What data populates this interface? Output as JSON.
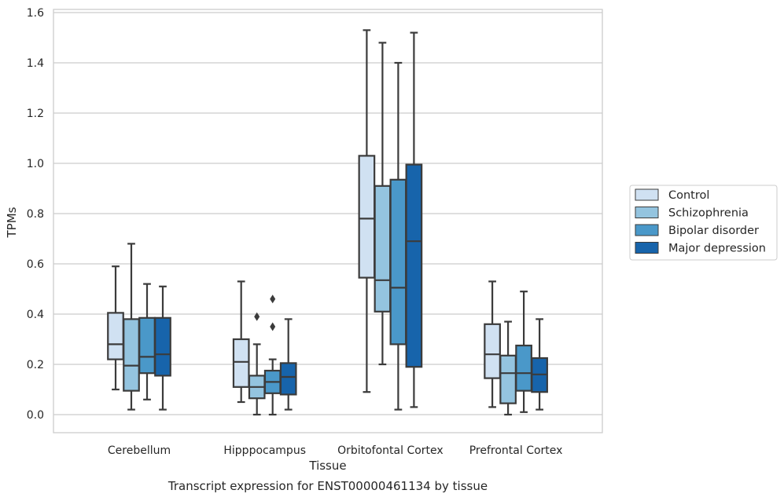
{
  "chart_data": {
    "type": "box",
    "title": "Transcript expression for ENST00000461134 by tissue",
    "xlabel": "Tissue",
    "ylabel": "TPMs",
    "ylim": [
      -0.07,
      1.61
    ],
    "yticks": [
      "0.0",
      "0.2",
      "0.4",
      "0.6",
      "0.8",
      "1.0",
      "1.2",
      "1.4",
      "1.6"
    ],
    "grid": true,
    "legend_position": "right",
    "categories": [
      "Cerebellum",
      "Hipppocampus",
      "Orbitofontal Cortex",
      "Prefrontal Cortex"
    ],
    "series": [
      {
        "name": "Control",
        "color": "#d0e1f2",
        "boxes": [
          {
            "whislo": 0.1,
            "q1": 0.22,
            "med": 0.28,
            "q3": 0.405,
            "whishi": 0.59,
            "fliers": []
          },
          {
            "whislo": 0.05,
            "q1": 0.11,
            "med": 0.21,
            "q3": 0.3,
            "whishi": 0.53,
            "fliers": []
          },
          {
            "whislo": 0.09,
            "q1": 0.545,
            "med": 0.78,
            "q3": 1.03,
            "whishi": 1.53,
            "fliers": []
          },
          {
            "whislo": 0.03,
            "q1": 0.145,
            "med": 0.24,
            "q3": 0.36,
            "whishi": 0.53,
            "fliers": []
          }
        ]
      },
      {
        "name": "Schizophrenia",
        "color": "#94c4df",
        "boxes": [
          {
            "whislo": 0.02,
            "q1": 0.095,
            "med": 0.195,
            "q3": 0.38,
            "whishi": 0.68,
            "fliers": []
          },
          {
            "whislo": 0.0,
            "q1": 0.065,
            "med": 0.11,
            "q3": 0.155,
            "whishi": 0.28,
            "fliers": [
              0.39
            ]
          },
          {
            "whislo": 0.2,
            "q1": 0.41,
            "med": 0.535,
            "q3": 0.91,
            "whishi": 1.48,
            "fliers": []
          },
          {
            "whislo": 0.0,
            "q1": 0.045,
            "med": 0.165,
            "q3": 0.235,
            "whishi": 0.37,
            "fliers": []
          }
        ]
      },
      {
        "name": "Bipolar disorder",
        "color": "#4a98c9",
        "boxes": [
          {
            "whislo": 0.06,
            "q1": 0.165,
            "med": 0.23,
            "q3": 0.385,
            "whishi": 0.52,
            "fliers": []
          },
          {
            "whislo": 0.0,
            "q1": 0.085,
            "med": 0.13,
            "q3": 0.175,
            "whishi": 0.22,
            "fliers": [
              0.35,
              0.46
            ]
          },
          {
            "whislo": 0.02,
            "q1": 0.28,
            "med": 0.505,
            "q3": 0.935,
            "whishi": 1.4,
            "fliers": []
          },
          {
            "whislo": 0.01,
            "q1": 0.095,
            "med": 0.165,
            "q3": 0.275,
            "whishi": 0.49,
            "fliers": []
          }
        ]
      },
      {
        "name": "Major depression",
        "color": "#1764ab",
        "boxes": [
          {
            "whislo": 0.02,
            "q1": 0.155,
            "med": 0.24,
            "q3": 0.385,
            "whishi": 0.51,
            "fliers": []
          },
          {
            "whislo": 0.02,
            "q1": 0.08,
            "med": 0.15,
            "q3": 0.205,
            "whishi": 0.38,
            "fliers": []
          },
          {
            "whislo": 0.03,
            "q1": 0.19,
            "med": 0.69,
            "q3": 0.995,
            "whishi": 1.52,
            "fliers": []
          },
          {
            "whislo": 0.02,
            "q1": 0.09,
            "med": 0.16,
            "q3": 0.225,
            "whishi": 0.38,
            "fliers": []
          }
        ]
      }
    ]
  }
}
